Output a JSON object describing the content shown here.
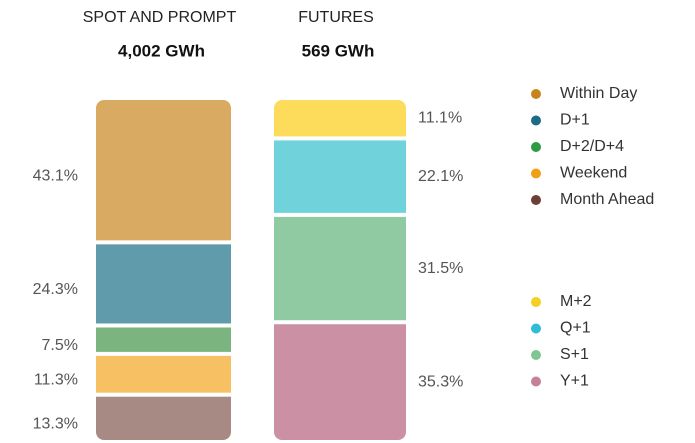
{
  "chart_data": {
    "type": "stacked-bar",
    "bars": [
      {
        "title": "SPOT AND PROMPT",
        "subtitle": "4,002 GWh",
        "label_side": "left",
        "segments": [
          {
            "name": "Within Day",
            "color": "#d9aa62",
            "marker_color": "#c8841a",
            "value": 43.1,
            "value_label": "43.1%"
          },
          {
            "name": "D+1",
            "color": "#5f9bab",
            "marker_color": "#1f6b85",
            "value": 24.3,
            "value_label": "24.3%"
          },
          {
            "name": "D+2/D+4",
            "color": "#7cb47f",
            "marker_color": "#2e9a45",
            "value": 7.5,
            "value_label": "7.5%"
          },
          {
            "name": "Weekend",
            "color": "#f6c063",
            "marker_color": "#f0a015",
            "value": 11.3,
            "value_label": "11.3%"
          },
          {
            "name": "Month Ahead",
            "color": "#a88a84",
            "marker_color": "#6b3f35",
            "value": 13.3,
            "value_label": "13.3%"
          }
        ]
      },
      {
        "title": "FUTURES",
        "subtitle": "569 GWh",
        "label_side": "right",
        "segments": [
          {
            "name": "M+2",
            "color": "#fcdc5a",
            "marker_color": "#f5d020",
            "value": 11.1,
            "value_label": "11.1%"
          },
          {
            "name": "Q+1",
            "color": "#70d3dc",
            "marker_color": "#2fbcd6",
            "value": 22.1,
            "value_label": "22.1%"
          },
          {
            "name": "S+1",
            "color": "#90caa3",
            "marker_color": "#7ec794",
            "value": 31.5,
            "value_label": "31.5%"
          },
          {
            "name": "Y+1",
            "color": "#cc90a4",
            "marker_color": "#c7809a",
            "value": 35.3,
            "value_label": "35.3%"
          }
        ]
      }
    ]
  }
}
